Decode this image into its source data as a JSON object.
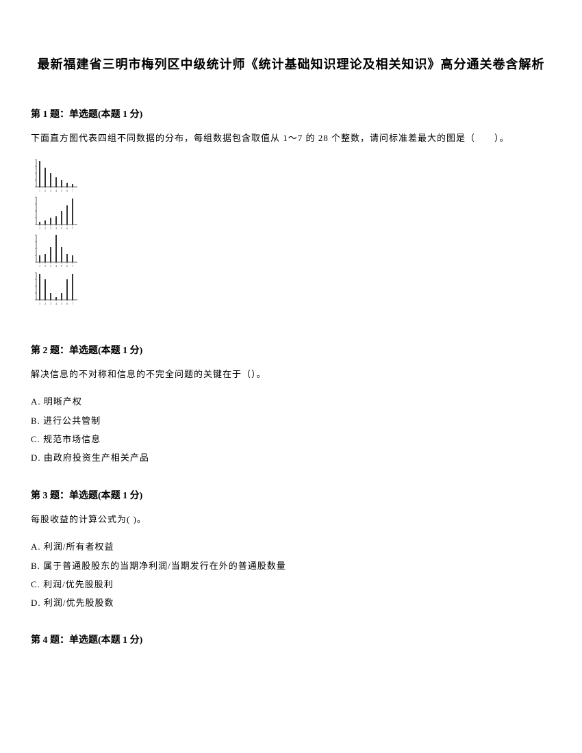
{
  "title": "最新福建省三明市梅列区中级统计师《统计基础知识理论及相关知识》高分通关卷含解析",
  "q1": {
    "header": "第 1 题：单选题(本题 1 分)",
    "text": "下面直方图代表四组不同数据的分布，每组数据包含取值从 1～7 的 28 个整数，请问标准差最大的图是（　　）。",
    "histograms": [
      {
        "bars": [
          38,
          28,
          20,
          14,
          10,
          6,
          4
        ],
        "axis_color": "#333333",
        "bar_color": "#333333"
      },
      {
        "bars": [
          4,
          6,
          10,
          12,
          20,
          28,
          38
        ],
        "axis_color": "#333333",
        "bar_color": "#333333"
      },
      {
        "bars": [
          10,
          12,
          22,
          40,
          22,
          12,
          10
        ],
        "axis_color": "#333333",
        "bar_color": "#333333"
      },
      {
        "bars": [
          38,
          30,
          10,
          4,
          10,
          30,
          38
        ],
        "axis_color": "#333333",
        "bar_color": "#333333"
      }
    ]
  },
  "q2": {
    "header": "第 2 题：单选题(本题 1 分)",
    "text": "解决信息的不对称和信息的不完全问题的关键在于（）。",
    "options": {
      "a": "A. 明晰产权",
      "b": "B. 进行公共管制",
      "c": "C. 规范市场信息",
      "d": "D. 由政府投资生产相关产品"
    }
  },
  "q3": {
    "header": "第 3 题：单选题(本题 1 分)",
    "text": "每股收益的计算公式为( )。",
    "options": {
      "a": "A. 利润/所有者权益",
      "b": "B. 属于普通股股东的当期净利润/当期发行在外的普通股数量",
      "c": "C. 利润/优先股股利",
      "d": "D. 利润/优先股股数"
    }
  },
  "q4": {
    "header": "第 4 题：单选题(本题 1 分)"
  }
}
